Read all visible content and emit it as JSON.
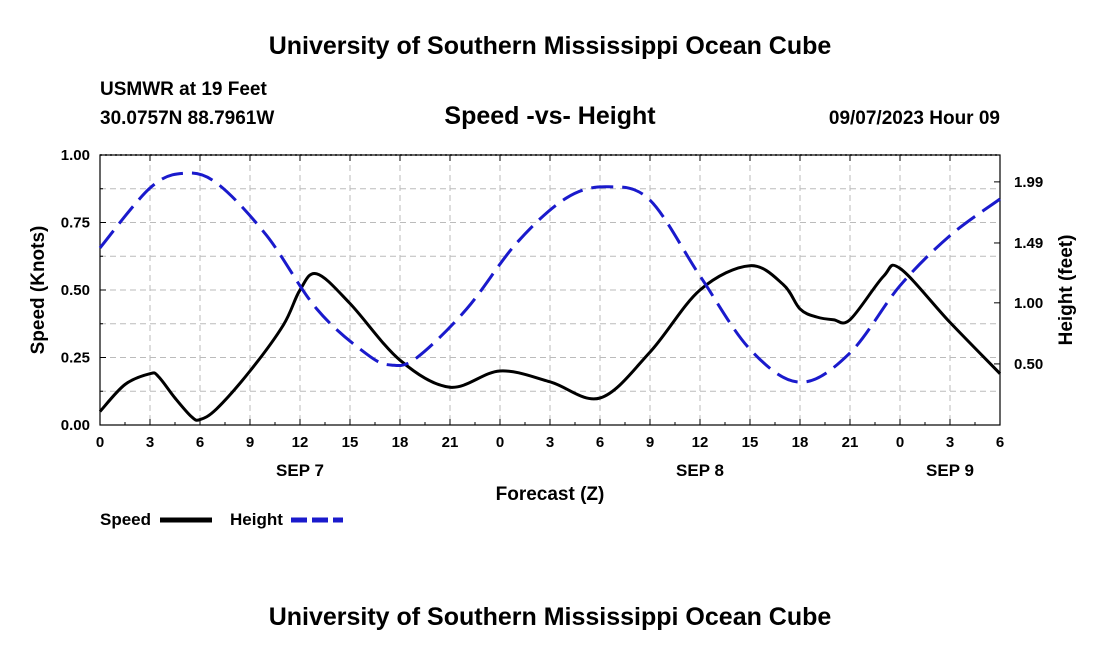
{
  "header": {
    "title": "University of Southern Mississippi Ocean Cube",
    "station": "USMWR at 19 Feet",
    "coords": "30.0757N  88.7961W",
    "subtitle": "Speed -vs- Height",
    "datetime": "09/07/2023 Hour 09"
  },
  "footer": {
    "title": "University of Southern Mississippi Ocean Cube"
  },
  "legend": {
    "speed_label": "Speed",
    "height_label": "Height"
  },
  "colors": {
    "speed": "#000000",
    "height": "#1a1acc",
    "grid": "#bbbbbb"
  },
  "chart_data": {
    "type": "line",
    "title": "Speed -vs- Height",
    "xlabel": "Forecast (Z)",
    "ylabel": "Speed (Knots)",
    "y2label": "Height (feet)",
    "xlim": [
      0,
      54
    ],
    "ylim": [
      0,
      1.0
    ],
    "y2lim": [
      0.0,
      2.21
    ],
    "x_ticks": [
      0,
      3,
      6,
      9,
      12,
      15,
      18,
      21,
      24,
      27,
      30,
      33,
      36,
      39,
      42,
      45,
      48,
      51,
      54
    ],
    "x_tick_labels": [
      "0",
      "3",
      "6",
      "9",
      "12",
      "15",
      "18",
      "21",
      "0",
      "3",
      "6",
      "9",
      "12",
      "15",
      "18",
      "21",
      "0",
      "3",
      "6"
    ],
    "y_ticks": [
      0,
      0.25,
      0.5,
      0.75,
      1.0
    ],
    "y_tick_labels": [
      "0.00",
      "0.25",
      "0.50",
      "0.75",
      "1.00"
    ],
    "y2_ticks": [
      0.5,
      1.0,
      1.49,
      1.99
    ],
    "y2_tick_labels": [
      "0.50",
      "1.00",
      "1.49",
      "1.99"
    ],
    "date_labels": [
      {
        "x": 12,
        "label": "SEP 7"
      },
      {
        "x": 36,
        "label": "SEP 8"
      },
      {
        "x": 51,
        "label": "SEP 9"
      }
    ],
    "grid": true,
    "series": [
      {
        "name": "Speed",
        "axis": "left",
        "style": "solid",
        "x": [
          0,
          1.5,
          3,
          3.5,
          4.5,
          5.5,
          6,
          7,
          9,
          11,
          12,
          13,
          15,
          18,
          21,
          24,
          27,
          30,
          33,
          36,
          39,
          41,
          42,
          43,
          44,
          45,
          47,
          48,
          51,
          54
        ],
        "y": [
          0.05,
          0.15,
          0.19,
          0.18,
          0.1,
          0.03,
          0.02,
          0.06,
          0.2,
          0.37,
          0.5,
          0.56,
          0.45,
          0.24,
          0.14,
          0.2,
          0.16,
          0.1,
          0.27,
          0.5,
          0.59,
          0.52,
          0.43,
          0.4,
          0.39,
          0.39,
          0.55,
          0.58,
          0.38,
          0.19
        ]
      },
      {
        "name": "Height",
        "axis": "right",
        "style": "dashed",
        "x": [
          0,
          3,
          5,
          7,
          10,
          13,
          16,
          17.5,
          19,
          22,
          25,
          28,
          30.5,
          33,
          36,
          39,
          42,
          45,
          48,
          51,
          54
        ],
        "y": [
          1.45,
          1.94,
          2.06,
          1.98,
          1.55,
          0.95,
          0.58,
          0.49,
          0.55,
          0.95,
          1.49,
          1.86,
          1.95,
          1.84,
          1.22,
          0.62,
          0.35,
          0.59,
          1.14,
          1.55,
          1.85
        ]
      }
    ]
  }
}
